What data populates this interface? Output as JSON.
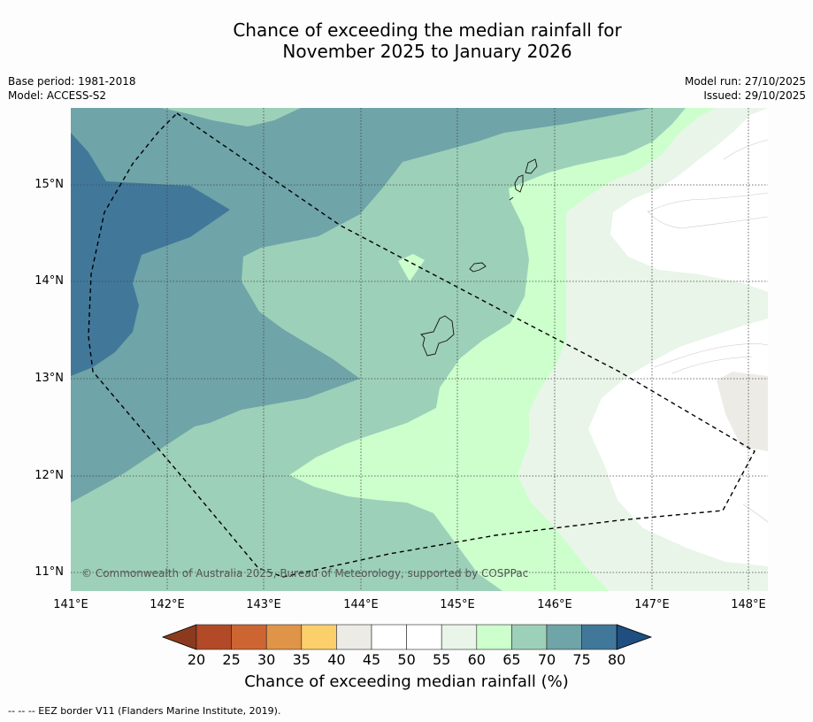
{
  "title_line1": "Chance of exceeding the median rainfall for",
  "title_line2": "November 2025 to January 2026",
  "meta": {
    "base_period": "Base period: 1981-2018",
    "model": "Model: ACCESS-S2",
    "model_run": "Model run: 27/10/2025",
    "issued": "Issued: 29/10/2025"
  },
  "map": {
    "lat_labels": [
      "15°N",
      "14°N",
      "13°N",
      "12°N",
      "11°N"
    ],
    "lon_labels": [
      "141°E",
      "142°E",
      "143°E",
      "144°E",
      "145°E",
      "146°E",
      "147°E",
      "148°E"
    ],
    "copyright": "© Commonwealth of Australia 2025, Bureau of Meteorology, supported by COSPPac"
  },
  "colorbar": {
    "ticks": [
      "20",
      "25",
      "30",
      "35",
      "40",
      "45",
      "50",
      "55",
      "60",
      "65",
      "70",
      "75",
      "80"
    ],
    "colors": [
      "#8c3a1e",
      "#b24a27",
      "#cd6533",
      "#e09448",
      "#fbcf6a",
      "#edebe6",
      "#ffffff",
      "#ffffff",
      "#e8f5e8",
      "#ccffcc",
      "#9dd0b9",
      "#6fa4a8",
      "#41789a",
      "#1f4e80"
    ],
    "label": "Chance of exceeding median rainfall (%)"
  },
  "footnote": "--  --  -- EEZ border V11 (Flanders Marine Institute, 2019)."
}
